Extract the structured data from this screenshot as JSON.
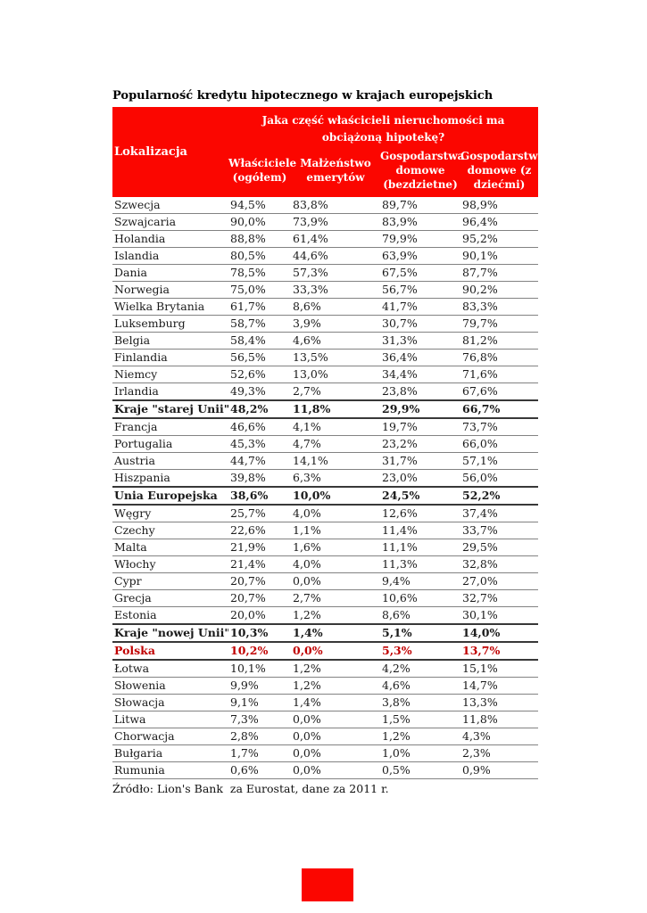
{
  "title": "Popularność kredytu hipotecznego w krajach europejskich",
  "table": {
    "span_header": "Jaka część właścicieli nieruchomości ma obciążoną hipotekę?",
    "col_location": "Lokalizacja",
    "columns": [
      "Właściciele (ogółem)",
      "Małżeństwo emerytów",
      "Gospodarstwa domowe (bezdzietne)",
      "Gospodarstwa domowe (z dziećmi)"
    ],
    "rows": [
      {
        "name": "Szwecja",
        "values": [
          "94,5%",
          "83,8%",
          "89,7%",
          "98,9%"
        ],
        "style": "normal"
      },
      {
        "name": "Szwajcaria",
        "values": [
          "90,0%",
          "73,9%",
          "83,9%",
          "96,4%"
        ],
        "style": "normal"
      },
      {
        "name": "Holandia",
        "values": [
          "88,8%",
          "61,4%",
          "79,9%",
          "95,2%"
        ],
        "style": "normal"
      },
      {
        "name": "Islandia",
        "values": [
          "80,5%",
          "44,6%",
          "63,9%",
          "90,1%"
        ],
        "style": "normal"
      },
      {
        "name": "Dania",
        "values": [
          "78,5%",
          "57,3%",
          "67,5%",
          "87,7%"
        ],
        "style": "normal"
      },
      {
        "name": "Norwegia",
        "values": [
          "75,0%",
          "33,3%",
          "56,7%",
          "90,2%"
        ],
        "style": "normal"
      },
      {
        "name": "Wielka Brytania",
        "values": [
          "61,7%",
          "8,6%",
          "41,7%",
          "83,3%"
        ],
        "style": "normal"
      },
      {
        "name": "Luksemburg",
        "values": [
          "58,7%",
          "3,9%",
          "30,7%",
          "79,7%"
        ],
        "style": "normal"
      },
      {
        "name": "Belgia",
        "values": [
          "58,4%",
          "4,6%",
          "31,3%",
          "81,2%"
        ],
        "style": "normal"
      },
      {
        "name": "Finlandia",
        "values": [
          "56,5%",
          "13,5%",
          "36,4%",
          "76,8%"
        ],
        "style": "normal"
      },
      {
        "name": "Niemcy",
        "values": [
          "52,6%",
          "13,0%",
          "34,4%",
          "71,6%"
        ],
        "style": "normal"
      },
      {
        "name": "Irlandia",
        "values": [
          "49,3%",
          "2,7%",
          "23,8%",
          "67,6%"
        ],
        "style": "normal"
      },
      {
        "name": "Kraje \"starej Unii\"",
        "values": [
          "48,2%",
          "11,8%",
          "29,9%",
          "66,7%"
        ],
        "style": "group"
      },
      {
        "name": "Francja",
        "values": [
          "46,6%",
          "4,1%",
          "19,7%",
          "73,7%"
        ],
        "style": "normal"
      },
      {
        "name": "Portugalia",
        "values": [
          "45,3%",
          "4,7%",
          "23,2%",
          "66,0%"
        ],
        "style": "normal"
      },
      {
        "name": "Austria",
        "values": [
          "44,7%",
          "14,1%",
          "31,7%",
          "57,1%"
        ],
        "style": "normal"
      },
      {
        "name": "Hiszpania",
        "values": [
          "39,8%",
          "6,3%",
          "23,0%",
          "56,0%"
        ],
        "style": "normal"
      },
      {
        "name": "Unia Europejska",
        "values": [
          "38,6%",
          "10,0%",
          "24,5%",
          "52,2%"
        ],
        "style": "group"
      },
      {
        "name": "Węgry",
        "values": [
          "25,7%",
          "4,0%",
          "12,6%",
          "37,4%"
        ],
        "style": "normal"
      },
      {
        "name": "Czechy",
        "values": [
          "22,6%",
          "1,1%",
          "11,4%",
          "33,7%"
        ],
        "style": "normal"
      },
      {
        "name": "Malta",
        "values": [
          "21,9%",
          "1,6%",
          "11,1%",
          "29,5%"
        ],
        "style": "normal"
      },
      {
        "name": "Włochy",
        "values": [
          "21,4%",
          "4,0%",
          "11,3%",
          "32,8%"
        ],
        "style": "normal"
      },
      {
        "name": "Cypr",
        "values": [
          "20,7%",
          "0,0%",
          "9,4%",
          "27,0%"
        ],
        "style": "normal"
      },
      {
        "name": "Grecja",
        "values": [
          "20,7%",
          "2,7%",
          "10,6%",
          "32,7%"
        ],
        "style": "normal"
      },
      {
        "name": "Estonia",
        "values": [
          "20,0%",
          "1,2%",
          "8,6%",
          "30,1%"
        ],
        "style": "normal"
      },
      {
        "name": "Kraje \"nowej Unii\"",
        "values": [
          "10,3%",
          "1,4%",
          "5,1%",
          "14,0%"
        ],
        "style": "group"
      },
      {
        "name": "Polska",
        "values": [
          "10,2%",
          "0,0%",
          "5,3%",
          "13,7%"
        ],
        "style": "highlight"
      },
      {
        "name": "Łotwa",
        "values": [
          "10,1%",
          "1,2%",
          "4,2%",
          "15,1%"
        ],
        "style": "normal"
      },
      {
        "name": "Słowenia",
        "values": [
          "9,9%",
          "1,2%",
          "4,6%",
          "14,7%"
        ],
        "style": "normal"
      },
      {
        "name": "Słowacja",
        "values": [
          "9,1%",
          "1,4%",
          "3,8%",
          "13,3%"
        ],
        "style": "normal"
      },
      {
        "name": "Litwa",
        "values": [
          "7,3%",
          "0,0%",
          "1,5%",
          "11,8%"
        ],
        "style": "normal"
      },
      {
        "name": "Chorwacja",
        "values": [
          "2,8%",
          "0,0%",
          "1,2%",
          "4,3%"
        ],
        "style": "normal"
      },
      {
        "name": "Bułgaria",
        "values": [
          "1,7%",
          "0,0%",
          "1,0%",
          "2,3%"
        ],
        "style": "normal"
      },
      {
        "name": "Rumunia",
        "values": [
          "0,6%",
          "0,0%",
          "0,5%",
          "0,9%"
        ],
        "style": "normal"
      }
    ]
  },
  "source": "Źródło: Lion's Bank  za Eurostat, dane za 2011 r.",
  "colors": {
    "header_bg": "#fb0600",
    "header_text": "#ffffff",
    "highlight_text": "#c00000",
    "row_line": "#828282"
  }
}
